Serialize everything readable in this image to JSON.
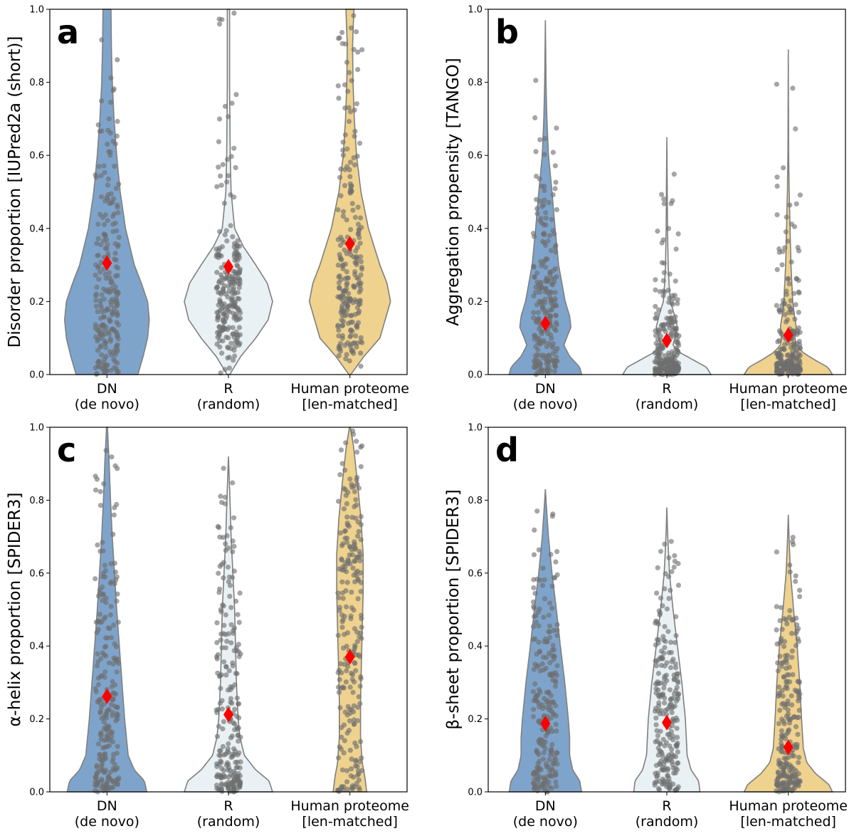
{
  "colors": {
    "dn": "#7FA4CB",
    "r": "#E9F1F4",
    "hp": "#EED28E",
    "outline": "#7F7F7F",
    "points": "#6E6E6E",
    "mean_marker": "#FF0000"
  },
  "chart_data": [
    {
      "type": "violin",
      "panel_label": "a",
      "ylabel": "Disorder proportion [IUPred2a (short)]",
      "ylim": [
        0,
        1.0
      ],
      "yticks": [
        "0.0",
        "0.2",
        "0.4",
        "0.6",
        "0.8",
        "1.0"
      ],
      "categories": [
        {
          "key": "dn",
          "label": [
            "DN",
            "(de novo)"
          ],
          "mean": 0.305,
          "min": 0.0,
          "max": 1.0,
          "density": [
            [
              0.0,
              0.7
            ],
            [
              0.05,
              0.82
            ],
            [
              0.1,
              0.92
            ],
            [
              0.15,
              0.96
            ],
            [
              0.2,
              0.92
            ],
            [
              0.25,
              0.78
            ],
            [
              0.3,
              0.62
            ],
            [
              0.4,
              0.42
            ],
            [
              0.5,
              0.3
            ],
            [
              0.6,
              0.22
            ],
            [
              0.7,
              0.16
            ],
            [
              0.8,
              0.12
            ],
            [
              0.9,
              0.1
            ],
            [
              1.0,
              0.09
            ]
          ]
        },
        {
          "key": "r",
          "label": [
            "R",
            "(random)"
          ],
          "mean": 0.295,
          "min": 0.0,
          "max": 1.0,
          "density": [
            [
              0.0,
              0.03
            ],
            [
              0.05,
              0.28
            ],
            [
              0.1,
              0.62
            ],
            [
              0.15,
              0.9
            ],
            [
              0.2,
              1.0
            ],
            [
              0.25,
              0.88
            ],
            [
              0.3,
              0.62
            ],
            [
              0.35,
              0.34
            ],
            [
              0.4,
              0.14
            ],
            [
              0.5,
              0.06
            ],
            [
              0.6,
              0.04
            ],
            [
              0.8,
              0.025
            ],
            [
              1.0,
              0.025
            ]
          ]
        },
        {
          "key": "hp",
          "label": [
            "Human proteome",
            "[len-matched]"
          ],
          "mean": 0.358,
          "min": 0.0,
          "max": 1.0,
          "density": [
            [
              0.0,
              0.02
            ],
            [
              0.05,
              0.32
            ],
            [
              0.1,
              0.68
            ],
            [
              0.2,
              0.92
            ],
            [
              0.25,
              0.84
            ],
            [
              0.3,
              0.68
            ],
            [
              0.4,
              0.42
            ],
            [
              0.5,
              0.25
            ],
            [
              0.6,
              0.15
            ],
            [
              0.7,
              0.1
            ],
            [
              0.8,
              0.07
            ],
            [
              0.9,
              0.06
            ],
            [
              1.0,
              0.09
            ]
          ]
        }
      ]
    },
    {
      "type": "violin",
      "panel_label": "b",
      "ylabel": "Aggregation propensity [TANGO]",
      "ylim": [
        0,
        1.0
      ],
      "yticks": [
        "0.0",
        "0.2",
        "0.4",
        "0.6",
        "0.8",
        "1.0"
      ],
      "categories": [
        {
          "key": "dn",
          "label": [
            "DN",
            "(de novo)"
          ],
          "mean": 0.14,
          "min": 0.0,
          "max": 0.97,
          "density": [
            [
              0.0,
              0.82
            ],
            [
              0.02,
              0.78
            ],
            [
              0.05,
              0.55
            ],
            [
              0.08,
              0.42
            ],
            [
              0.1,
              0.48
            ],
            [
              0.13,
              0.58
            ],
            [
              0.16,
              0.55
            ],
            [
              0.2,
              0.45
            ],
            [
              0.3,
              0.3
            ],
            [
              0.4,
              0.22
            ],
            [
              0.5,
              0.15
            ],
            [
              0.6,
              0.07
            ],
            [
              0.7,
              0.035
            ],
            [
              0.8,
              0.015
            ],
            [
              0.97,
              0.0
            ]
          ]
        },
        {
          "key": "r",
          "label": [
            "R",
            "(random)"
          ],
          "mean": 0.093,
          "min": 0.0,
          "max": 0.65,
          "density": [
            [
              0.0,
              1.0
            ],
            [
              0.02,
              0.9
            ],
            [
              0.04,
              0.6
            ],
            [
              0.06,
              0.3
            ],
            [
              0.08,
              0.14
            ],
            [
              0.1,
              0.18
            ],
            [
              0.13,
              0.24
            ],
            [
              0.16,
              0.18
            ],
            [
              0.2,
              0.08
            ],
            [
              0.25,
              0.05
            ],
            [
              0.3,
              0.03
            ],
            [
              0.4,
              0.015
            ],
            [
              0.5,
              0.01
            ],
            [
              0.65,
              0.0
            ]
          ]
        },
        {
          "key": "hp",
          "label": [
            "Human proteome",
            "[len-matched]"
          ],
          "mean": 0.108,
          "min": 0.0,
          "max": 0.89,
          "density": [
            [
              0.0,
              1.0
            ],
            [
              0.02,
              0.9
            ],
            [
              0.04,
              0.6
            ],
            [
              0.06,
              0.34
            ],
            [
              0.08,
              0.18
            ],
            [
              0.1,
              0.15
            ],
            [
              0.13,
              0.18
            ],
            [
              0.16,
              0.14
            ],
            [
              0.2,
              0.1
            ],
            [
              0.3,
              0.06
            ],
            [
              0.4,
              0.04
            ],
            [
              0.5,
              0.02
            ],
            [
              0.6,
              0.008
            ],
            [
              0.89,
              0.0
            ]
          ]
        }
      ]
    },
    {
      "type": "violin",
      "panel_label": "c",
      "ylabel": "α-helix proportion [SPIDER3]",
      "ylim": [
        0,
        1.0
      ],
      "yticks": [
        "0.0",
        "0.2",
        "0.4",
        "0.6",
        "0.8",
        "1.0"
      ],
      "categories": [
        {
          "key": "dn",
          "label": [
            "DN",
            "(de novo)"
          ],
          "mean": 0.262,
          "min": 0.0,
          "max": 1.0,
          "density": [
            [
              0.0,
              0.9
            ],
            [
              0.03,
              0.85
            ],
            [
              0.06,
              0.62
            ],
            [
              0.1,
              0.48
            ],
            [
              0.2,
              0.4
            ],
            [
              0.3,
              0.34
            ],
            [
              0.4,
              0.28
            ],
            [
              0.5,
              0.22
            ],
            [
              0.6,
              0.17
            ],
            [
              0.7,
              0.12
            ],
            [
              0.8,
              0.08
            ],
            [
              0.9,
              0.05
            ],
            [
              1.0,
              0.01
            ]
          ]
        },
        {
          "key": "r",
          "label": [
            "R",
            "(random)"
          ],
          "mean": 0.212,
          "min": 0.0,
          "max": 0.92,
          "density": [
            [
              0.0,
              1.0
            ],
            [
              0.03,
              0.92
            ],
            [
              0.06,
              0.62
            ],
            [
              0.1,
              0.36
            ],
            [
              0.15,
              0.26
            ],
            [
              0.2,
              0.22
            ],
            [
              0.3,
              0.18
            ],
            [
              0.4,
              0.16
            ],
            [
              0.5,
              0.14
            ],
            [
              0.6,
              0.1
            ],
            [
              0.7,
              0.06
            ],
            [
              0.8,
              0.035
            ],
            [
              0.92,
              0.0
            ]
          ]
        },
        {
          "key": "hp",
          "label": [
            "Human proteome",
            "[len-matched]"
          ],
          "mean": 0.37,
          "min": 0.0,
          "max": 1.0,
          "density": [
            [
              0.0,
              0.38
            ],
            [
              0.04,
              0.34
            ],
            [
              0.08,
              0.28
            ],
            [
              0.15,
              0.24
            ],
            [
              0.25,
              0.24
            ],
            [
              0.35,
              0.26
            ],
            [
              0.45,
              0.28
            ],
            [
              0.55,
              0.3
            ],
            [
              0.65,
              0.3
            ],
            [
              0.75,
              0.25
            ],
            [
              0.85,
              0.17
            ],
            [
              0.95,
              0.08
            ],
            [
              1.0,
              0.01
            ]
          ]
        }
      ]
    },
    {
      "type": "violin",
      "panel_label": "d",
      "ylabel": "β-sheet proportion [SPIDER3]",
      "ylim": [
        0,
        1.0
      ],
      "yticks": [
        "0.0",
        "0.2",
        "0.4",
        "0.6",
        "0.8",
        "1.0"
      ],
      "categories": [
        {
          "key": "dn",
          "label": [
            "DN",
            "(de novo)"
          ],
          "mean": 0.187,
          "min": 0.0,
          "max": 0.83,
          "density": [
            [
              0.0,
              0.82
            ],
            [
              0.03,
              0.78
            ],
            [
              0.06,
              0.62
            ],
            [
              0.1,
              0.55
            ],
            [
              0.15,
              0.55
            ],
            [
              0.2,
              0.52
            ],
            [
              0.3,
              0.44
            ],
            [
              0.4,
              0.34
            ],
            [
              0.5,
              0.25
            ],
            [
              0.6,
              0.15
            ],
            [
              0.7,
              0.07
            ],
            [
              0.8,
              0.015
            ],
            [
              0.83,
              0.0
            ]
          ]
        },
        {
          "key": "r",
          "label": [
            "R",
            "(random)"
          ],
          "mean": 0.19,
          "min": 0.0,
          "max": 0.78,
          "density": [
            [
              0.0,
              0.75
            ],
            [
              0.03,
              0.72
            ],
            [
              0.06,
              0.55
            ],
            [
              0.1,
              0.46
            ],
            [
              0.15,
              0.44
            ],
            [
              0.2,
              0.42
            ],
            [
              0.3,
              0.34
            ],
            [
              0.4,
              0.24
            ],
            [
              0.5,
              0.14
            ],
            [
              0.6,
              0.06
            ],
            [
              0.7,
              0.02
            ],
            [
              0.78,
              0.0
            ]
          ]
        },
        {
          "key": "hp",
          "label": [
            "Human proteome",
            "[len-matched]"
          ],
          "mean": 0.122,
          "min": 0.0,
          "max": 0.76,
          "density": [
            [
              0.0,
              1.0
            ],
            [
              0.02,
              0.92
            ],
            [
              0.05,
              0.62
            ],
            [
              0.08,
              0.42
            ],
            [
              0.12,
              0.34
            ],
            [
              0.2,
              0.3
            ],
            [
              0.3,
              0.26
            ],
            [
              0.4,
              0.2
            ],
            [
              0.5,
              0.12
            ],
            [
              0.6,
              0.05
            ],
            [
              0.7,
              0.015
            ],
            [
              0.76,
              0.0
            ]
          ]
        }
      ]
    }
  ]
}
